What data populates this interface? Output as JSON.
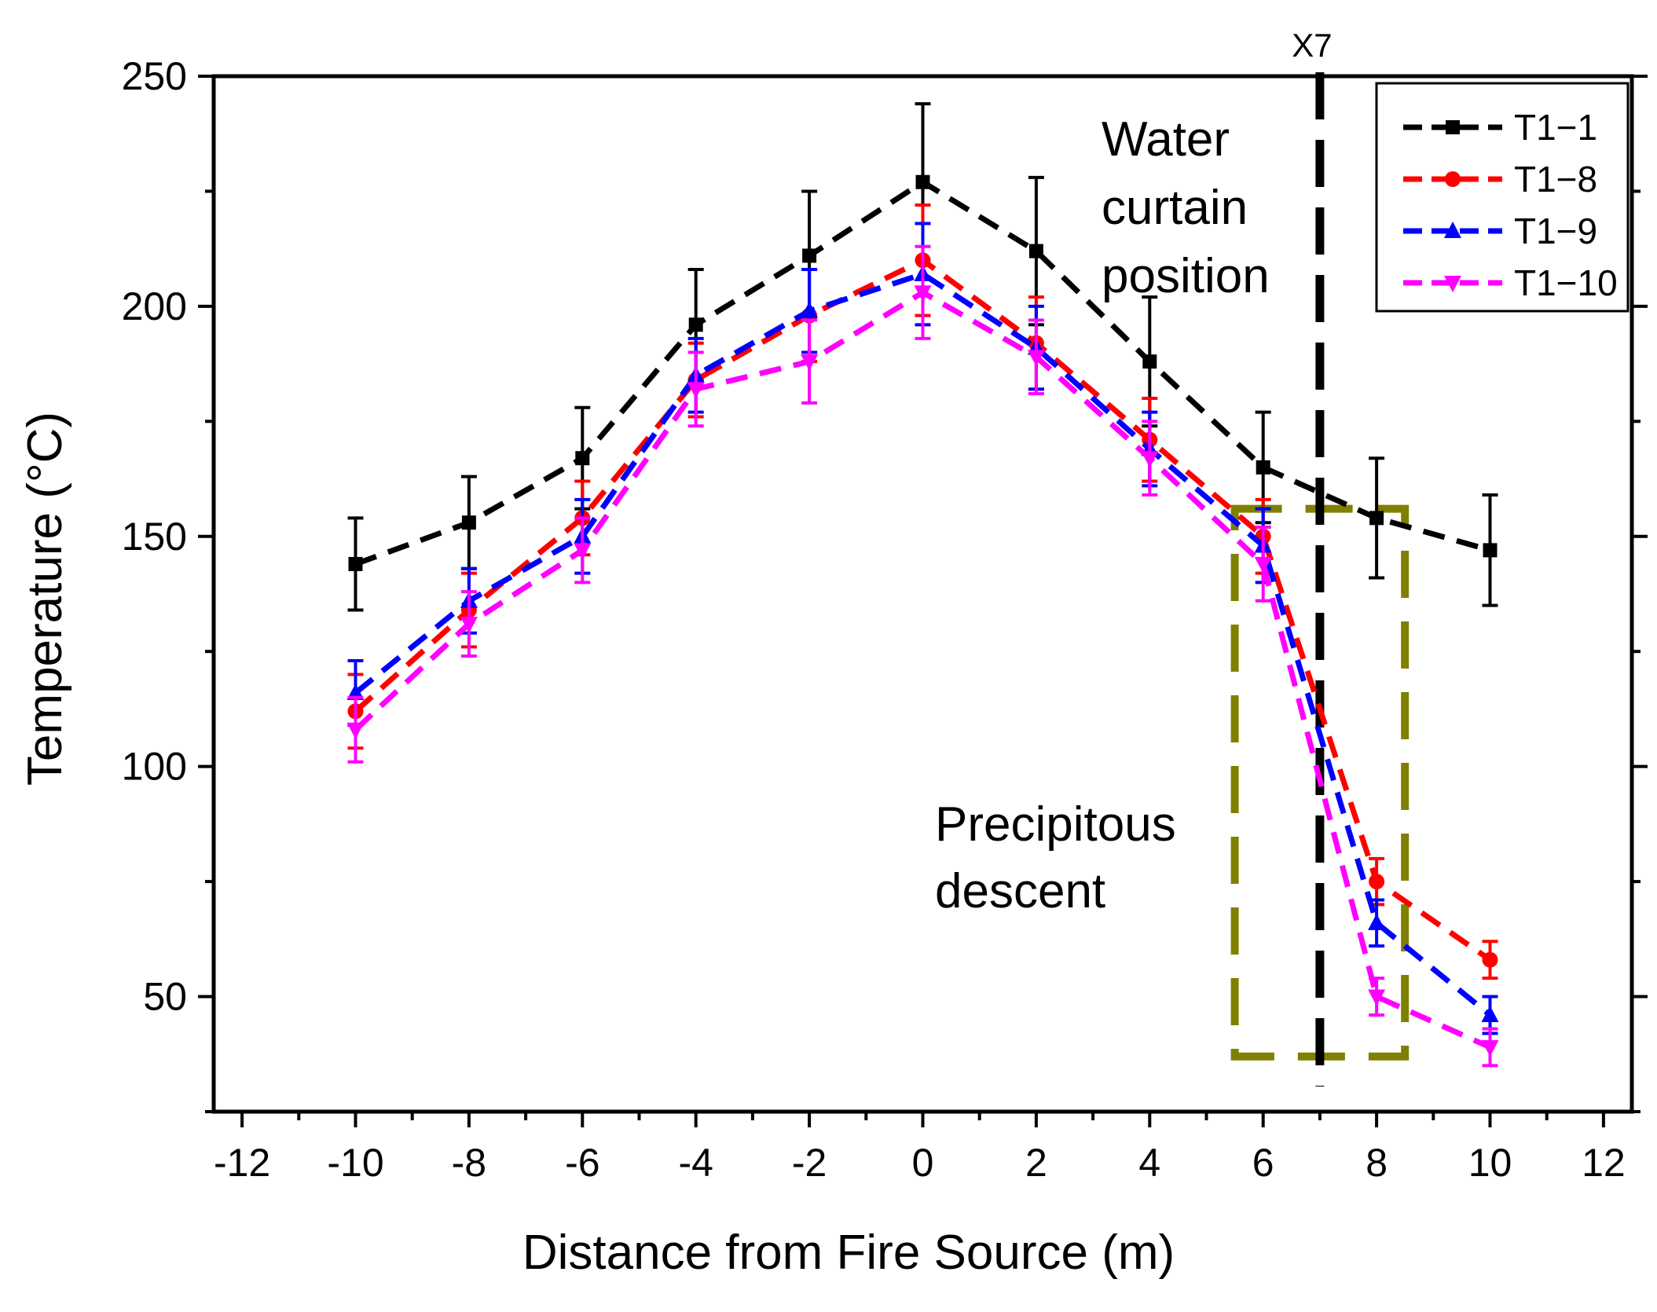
{
  "chart_data": {
    "type": "line",
    "title": "",
    "xlabel": "Distance from Fire Source (m)",
    "ylabel": "Temperature (°C)",
    "xlim": [
      -12.5,
      12.5
    ],
    "ylim": [
      25,
      250
    ],
    "xticks": [
      -12,
      -10,
      -8,
      -6,
      -4,
      -2,
      0,
      2,
      4,
      6,
      8,
      10,
      12
    ],
    "xtick_labels": [
      "-12",
      "-10",
      "-8",
      "-6",
      "-4",
      "-2",
      "0",
      "2",
      "4",
      "6",
      "8",
      "10",
      "12"
    ],
    "yticks": [
      50,
      100,
      150,
      200,
      250
    ],
    "ytick_labels": [
      "50",
      "100",
      "150",
      "200",
      "250"
    ],
    "x": [
      -10,
      -8,
      -6,
      -4,
      -2,
      0,
      2,
      4,
      6,
      8,
      10
    ],
    "series": [
      {
        "name": "T1−1",
        "color": "#000000",
        "marker": "square",
        "values": [
          144,
          153,
          167,
          196,
          211,
          227,
          212,
          188,
          165,
          154,
          147
        ],
        "errors": [
          10,
          10,
          11,
          12,
          14,
          17,
          16,
          14,
          12,
          13,
          12
        ]
      },
      {
        "name": "T1−8",
        "color": "#ff0000",
        "marker": "circle",
        "values": [
          112,
          134,
          154,
          184,
          198,
          210,
          192,
          171,
          150,
          75,
          58
        ]
      },
      {
        "name": "T1−9",
        "color": "#0000ff",
        "marker": "triangle-up",
        "values": [
          116,
          136,
          150,
          185,
          199,
          207,
          191,
          169,
          148,
          66,
          46
        ]
      },
      {
        "name": "T1−10",
        "color": "#ff00ff",
        "marker": "triangle-down",
        "values": [
          108,
          131,
          147,
          182,
          188,
          203,
          189,
          167,
          144,
          50,
          39
        ]
      }
    ],
    "series_errors": [
      [
        10,
        10,
        11,
        12,
        14,
        17,
        16,
        14,
        12,
        13,
        12
      ],
      [
        8,
        8,
        8,
        8,
        10,
        12,
        10,
        9,
        8,
        5,
        4
      ],
      [
        7,
        7,
        8,
        8,
        9,
        11,
        9,
        8,
        8,
        5,
        4
      ],
      [
        7,
        7,
        7,
        8,
        9,
        10,
        8,
        8,
        8,
        4,
        4
      ]
    ],
    "vline": {
      "x": 7,
      "label": "X7",
      "color": "#000000"
    },
    "highlight_box": {
      "x0": 5.5,
      "x1": 8.5,
      "y0": 37,
      "y1": 156,
      "color": "#7f7f00"
    },
    "annotations": {
      "water_line1": "Water",
      "water_line2": "curtain",
      "water_line3": "position",
      "precip_line1": "Precipitous",
      "precip_line2": "descent"
    },
    "legend_position": "top-right",
    "grid": false
  }
}
